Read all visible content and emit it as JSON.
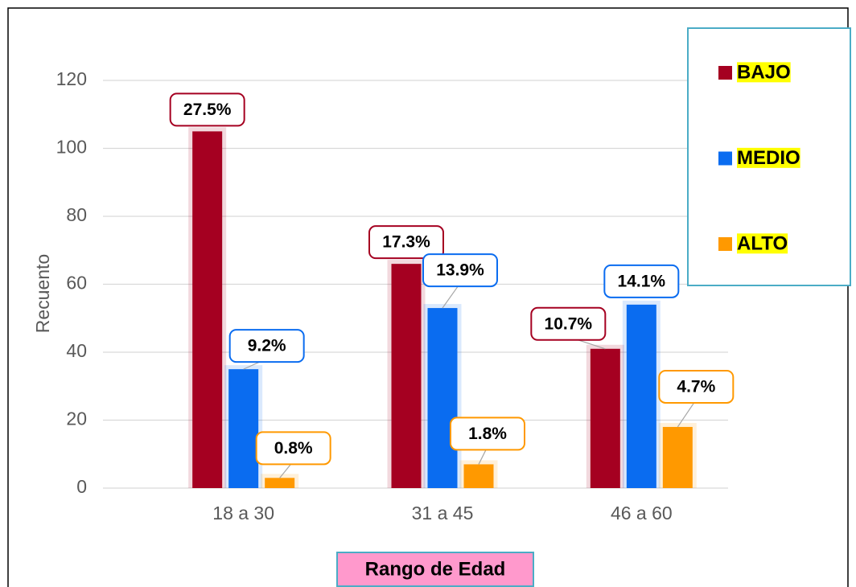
{
  "chart_data": {
    "type": "bar",
    "categories": [
      "18 a 30",
      "31 a 45",
      "46 a 60"
    ],
    "series": [
      {
        "name": "BAJO",
        "color": "#a50021",
        "values": [
          105,
          66,
          41
        ],
        "labels": [
          "27.5%",
          "17.3%",
          "10.7%"
        ]
      },
      {
        "name": "MEDIO",
        "color": "#0a6cf0",
        "values": [
          35,
          53,
          54
        ],
        "labels": [
          "9.2%",
          "13.9%",
          "14.1%"
        ]
      },
      {
        "name": "ALTO",
        "color": "#ff9900",
        "values": [
          3,
          7,
          18
        ],
        "labels": [
          "0.8%",
          "1.8%",
          "4.7%"
        ]
      }
    ],
    "ylabel": "Recuento",
    "xlabel": "Rango de Edad",
    "ylim": [
      0,
      120
    ],
    "yticks": [
      0,
      20,
      40,
      60,
      80,
      100,
      120
    ],
    "grid": true
  }
}
